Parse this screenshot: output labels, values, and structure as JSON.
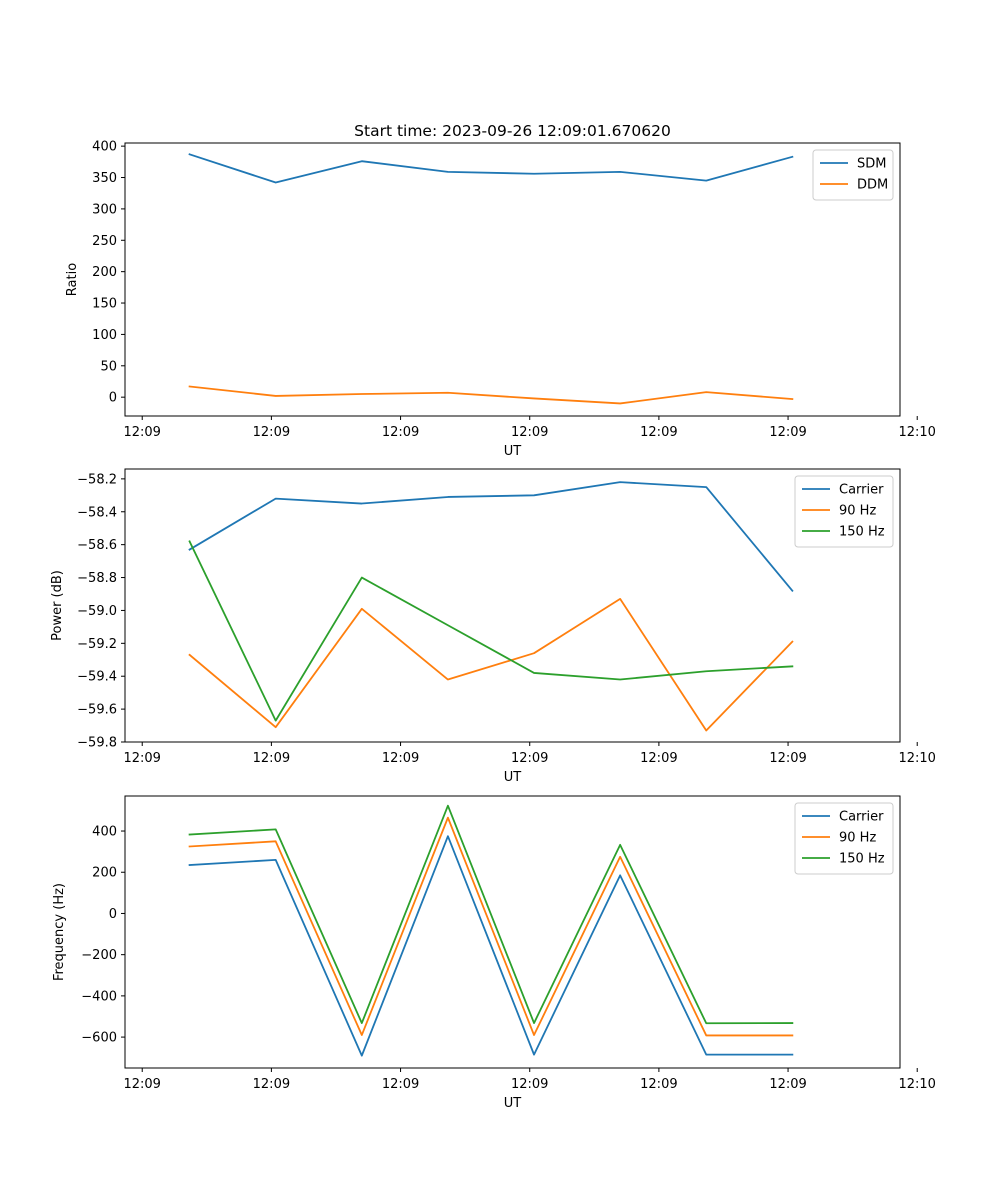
{
  "figure_title": "Start time: 2023-09-26 12:09:01.670620",
  "colors": {
    "blue": "#1f77b4",
    "orange": "#ff7f0e",
    "green": "#2ca02c"
  },
  "chart_data": [
    {
      "type": "line",
      "title": "Start time: 2023-09-26 12:09:01.670620",
      "xlabel": "UT",
      "ylabel": "Ratio",
      "x": [
        1,
        2,
        3,
        4,
        5,
        6,
        7,
        8
      ],
      "xlim": [
        0.25,
        9.25
      ],
      "xticks": [
        0.45,
        1.95,
        3.45,
        4.95,
        6.45,
        7.95,
        9.45
      ],
      "xtick_labels": [
        "12:09",
        "12:09",
        "12:09",
        "12:09",
        "12:09",
        "12:09",
        "12:10"
      ],
      "ylim": [
        -30,
        405
      ],
      "yticks": [
        0,
        50,
        100,
        150,
        200,
        250,
        300,
        350,
        400
      ],
      "ytick_labels": [
        "0",
        "50",
        "100",
        "150",
        "200",
        "250",
        "300",
        "350",
        "400"
      ],
      "legend": "top-right",
      "series": [
        {
          "name": "SDM",
          "color": "#1f77b4",
          "values": [
            387,
            342,
            376,
            359,
            356,
            359,
            345,
            383
          ]
        },
        {
          "name": "DDM",
          "color": "#ff7f0e",
          "values": [
            17,
            2,
            5,
            7,
            -2,
            -10,
            8,
            -3
          ]
        }
      ]
    },
    {
      "type": "line",
      "title": "",
      "xlabel": "UT",
      "ylabel": "Power (dB)",
      "x": [
        1,
        2,
        3,
        4,
        5,
        6,
        7,
        8
      ],
      "xlim": [
        0.25,
        9.25
      ],
      "xticks": [
        0.45,
        1.95,
        3.45,
        4.95,
        6.45,
        7.95,
        9.45
      ],
      "xtick_labels": [
        "12:09",
        "12:09",
        "12:09",
        "12:09",
        "12:09",
        "12:09",
        "12:10"
      ],
      "ylim": [
        -59.8,
        -58.14
      ],
      "yticks": [
        -59.8,
        -59.6,
        -59.4,
        -59.2,
        -59.0,
        -58.8,
        -58.6,
        -58.4,
        -58.2
      ],
      "ytick_labels": [
        "−59.8",
        "−59.6",
        "−59.4",
        "−59.2",
        "−59.0",
        "−58.8",
        "−58.6",
        "−58.4",
        "−58.2"
      ],
      "legend": "top-right",
      "series": [
        {
          "name": "Carrier",
          "color": "#1f77b4",
          "values": [
            -58.63,
            -58.32,
            -58.35,
            -58.31,
            -58.3,
            -58.22,
            -58.25,
            -58.88
          ]
        },
        {
          "name": "90 Hz",
          "color": "#ff7f0e",
          "values": [
            -59.27,
            -59.71,
            -58.99,
            -59.42,
            -59.26,
            -58.93,
            -59.73,
            -59.19
          ]
        },
        {
          "name": "150 Hz",
          "color": "#2ca02c",
          "values": [
            -58.58,
            -59.67,
            -58.8,
            -59.09,
            -59.38,
            -59.42,
            -59.37,
            -59.34
          ]
        }
      ]
    },
    {
      "type": "line",
      "title": "",
      "xlabel": "UT",
      "ylabel": "Frequency (Hz)",
      "x": [
        1,
        2,
        3,
        4,
        5,
        6,
        7,
        8
      ],
      "xlim": [
        0.25,
        9.25
      ],
      "xticks": [
        0.45,
        1.95,
        3.45,
        4.95,
        6.45,
        7.95,
        9.45
      ],
      "xtick_labels": [
        "12:09",
        "12:09",
        "12:09",
        "12:09",
        "12:09",
        "12:09",
        "12:10"
      ],
      "ylim": [
        -750,
        570
      ],
      "yticks": [
        -600,
        -400,
        -200,
        0,
        200,
        400
      ],
      "ytick_labels": [
        "−600",
        "−400",
        "−200",
        "0",
        "200",
        "400"
      ],
      "legend": "top-right",
      "series": [
        {
          "name": "Carrier",
          "color": "#1f77b4",
          "values": [
            235,
            260,
            -690,
            375,
            -685,
            185,
            -685,
            -685
          ]
        },
        {
          "name": "90 Hz",
          "color": "#ff7f0e",
          "values": [
            325,
            350,
            -590,
            465,
            -590,
            275,
            -592,
            -592
          ]
        },
        {
          "name": "150 Hz",
          "color": "#2ca02c",
          "values": [
            383,
            408,
            -532,
            523,
            -532,
            333,
            -533,
            -532
          ]
        }
      ]
    }
  ]
}
